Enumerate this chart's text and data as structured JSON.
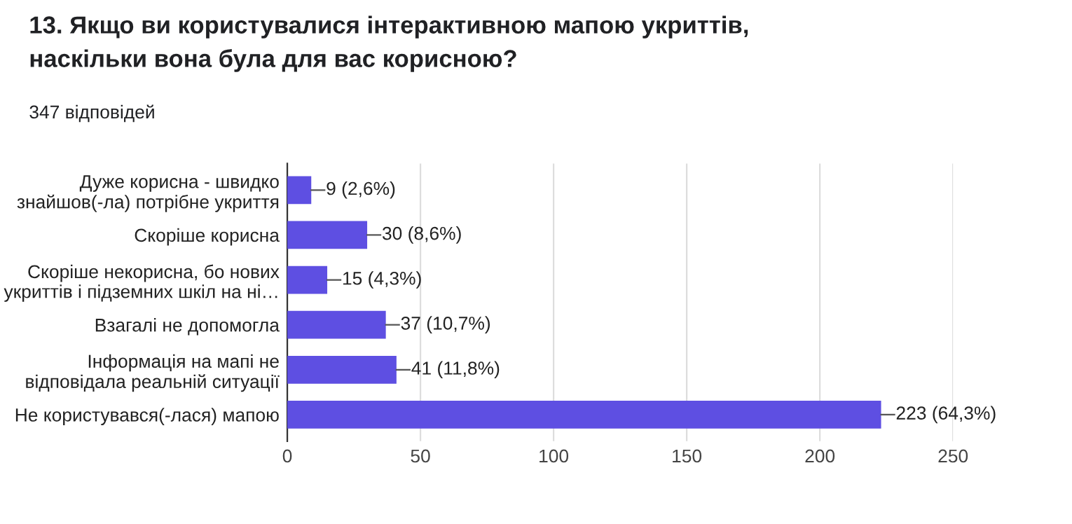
{
  "chart_data": {
    "type": "bar",
    "orientation": "horizontal",
    "title": "13. Якщо ви користувалися інтерактивною мапою укриттів,\nнаскільки вона була для вас корисною?",
    "subtitle": "347 відповідей",
    "categories": [
      "Дуже корисна - швидко\nзнайшов(-ла) потрібне укриття",
      "Скоріше корисна",
      "Скоріше некорисна, бо нових\nукриттів і підземних шкіл на ні…",
      "Взагалі не допомогла",
      "Інформація на мапі не\nвідповідала реальній ситуації",
      "Не користувався(-лася) мапою"
    ],
    "values": [
      9,
      30,
      15,
      37,
      41,
      223
    ],
    "value_labels": [
      "9 (2,6%)",
      "30 (8,6%)",
      "15 (4,3%)",
      "37 (10,7%)",
      "41 (11,8%)",
      "223 (64,3%)"
    ],
    "color": "#5e4fe2",
    "xlim": [
      0,
      250
    ],
    "xticks": [
      0,
      50,
      100,
      150,
      200,
      250
    ],
    "grid": "x",
    "legend": false
  }
}
